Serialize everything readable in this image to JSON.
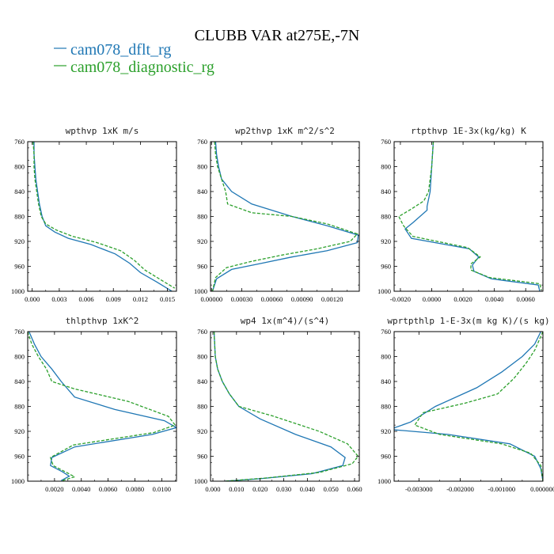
{
  "figure": {
    "title": "CLUBB VAR at275E,-7N",
    "legend": [
      {
        "label": "cam078_dflt_rg",
        "color": "#1f77b4",
        "dash": "solid"
      },
      {
        "label": "cam078_diagnostic_rg",
        "color": "#2ca02c",
        "dash": "dashed"
      }
    ]
  },
  "chart_data": [
    {
      "type": "line",
      "title": "wpthvp  1xK m/s",
      "xlim": [
        -0.0005,
        0.016
      ],
      "ylim": [
        760,
        1000
      ],
      "y_inverted": true,
      "xticks": [
        "0.000",
        "0.003",
        "0.006",
        "0.009",
        "0.012",
        "0.015"
      ],
      "xtick_values": [
        0,
        0.003,
        0.006,
        0.009,
        0.012,
        0.015
      ],
      "yticks": [
        760,
        800,
        840,
        880,
        920,
        960,
        1000
      ],
      "series": [
        {
          "name": "cam078_dflt_rg",
          "x": [
            0.0002,
            0.0002,
            0.0003,
            0.0004,
            0.0006,
            0.0008,
            0.0011,
            0.0015,
            0.0025,
            0.004,
            0.0065,
            0.0092,
            0.0108,
            0.012,
            0.0138,
            0.0155
          ],
          "y": [
            760,
            780,
            800,
            820,
            840,
            860,
            880,
            895,
            905,
            915,
            925,
            940,
            955,
            970,
            985,
            1000
          ]
        },
        {
          "name": "cam078_diagnostic_rg",
          "x": [
            0.0001,
            0.0002,
            0.0002,
            0.0003,
            0.0005,
            0.0007,
            0.001,
            0.0015,
            0.0027,
            0.0045,
            0.0072,
            0.0098,
            0.0113,
            0.0125,
            0.0143,
            0.0158
          ],
          "y": [
            760,
            780,
            800,
            820,
            840,
            860,
            880,
            892,
            902,
            912,
            922,
            935,
            950,
            966,
            982,
            995
          ]
        }
      ]
    },
    {
      "type": "line",
      "title": "wp2thvp  1xK m^2/s^2",
      "xlim": [
        -1e-05,
        0.00147
      ],
      "ylim": [
        760,
        1000
      ],
      "y_inverted": true,
      "xticks": [
        "0.00000",
        "0.00030",
        "0.00060",
        "0.00090",
        "0.00120"
      ],
      "xtick_values": [
        0,
        0.0003,
        0.0006,
        0.0009,
        0.0012
      ],
      "yticks": [
        760,
        800,
        840,
        880,
        920,
        960,
        1000
      ],
      "series": [
        {
          "name": "cam078_dflt_rg",
          "x": [
            4e-05,
            5e-05,
            7e-05,
            0.0001,
            0.0002,
            0.0004,
            0.0006,
            0.0008,
            0.00115,
            0.00146,
            0.00145,
            0.00115,
            0.0008,
            0.0005,
            0.0002,
            5e-05,
            1e-05
          ],
          "y": [
            760,
            780,
            800,
            820,
            840,
            860,
            870,
            880,
            895,
            910,
            922,
            935,
            945,
            955,
            965,
            980,
            1000
          ]
        },
        {
          "name": "cam078_diagnostic_rg",
          "x": [
            3e-05,
            4e-05,
            6e-05,
            0.0001,
            0.00014,
            0.00016,
            0.0004,
            0.0008,
            0.00115,
            0.00145,
            0.00138,
            0.00105,
            0.0007,
            0.0004,
            0.00015,
            4e-05,
            1e-05
          ],
          "y": [
            760,
            780,
            800,
            820,
            840,
            860,
            874,
            880,
            892,
            908,
            920,
            932,
            942,
            952,
            962,
            978,
            1000
          ]
        }
      ]
    },
    {
      "type": "line",
      "title": "rtpthvp  1E-3x(kg/kg) K",
      "xlim": [
        -0.0024,
        0.0071
      ],
      "ylim": [
        760,
        1000
      ],
      "y_inverted": true,
      "xticks": [
        "-0.0020",
        "0.0000",
        "0.0020",
        "0.0040",
        "0.0060"
      ],
      "xtick_values": [
        -0.002,
        0,
        0.002,
        0.004,
        0.006
      ],
      "yticks": [
        760,
        800,
        840,
        880,
        920,
        960,
        1000
      ],
      "series": [
        {
          "name": "cam078_dflt_rg",
          "x": [
            0.0001,
            0.0,
            -0.0001,
            -0.0003,
            -0.0003,
            -0.0012,
            -0.0017,
            -0.0013,
            0.0024,
            0.003,
            0.0026,
            0.0027,
            0.0038,
            0.0068,
            0.0069
          ],
          "y": [
            760,
            800,
            840,
            864,
            870,
            890,
            900,
            915,
            932,
            945,
            958,
            968,
            980,
            990,
            1000
          ]
        },
        {
          "name": "cam078_diagnostic_rg",
          "x": [
            0.0001,
            0.0,
            -0.0002,
            -0.0005,
            -0.0013,
            -0.0021,
            -0.0018,
            -0.0012,
            0.0023,
            0.0031,
            0.0025,
            0.0025,
            0.0037,
            0.0069,
            0.007
          ],
          "y": [
            760,
            800,
            840,
            855,
            868,
            880,
            895,
            912,
            930,
            945,
            956,
            966,
            978,
            988,
            998
          ]
        }
      ]
    },
    {
      "type": "line",
      "title": "thlpthvp  1xK^2",
      "xlim": [
        0.0,
        0.0111
      ],
      "ylim": [
        760,
        1000
      ],
      "y_inverted": true,
      "xticks": [
        "0.0020",
        "0.0040",
        "0.0060",
        "0.0080",
        "0.0100"
      ],
      "xtick_values": [
        0.002,
        0.004,
        0.006,
        0.008,
        0.01
      ],
      "yticks": [
        760,
        800,
        840,
        880,
        920,
        960,
        1000
      ],
      "series": [
        {
          "name": "cam078_dflt_rg",
          "x": [
            0.0001,
            0.0005,
            0.001,
            0.0018,
            0.0025,
            0.0035,
            0.0065,
            0.0102,
            0.0111,
            0.0093,
            0.0035,
            0.0018,
            0.0017,
            0.0026,
            0.0031,
            0.0025
          ],
          "y": [
            760,
            780,
            800,
            820,
            840,
            865,
            885,
            903,
            914,
            925,
            945,
            962,
            975,
            985,
            992,
            999
          ]
        },
        {
          "name": "cam078_diagnostic_rg",
          "x": [
            0.0,
            0.0003,
            0.0008,
            0.0014,
            0.0018,
            0.0035,
            0.0075,
            0.0105,
            0.011,
            0.0094,
            0.0034,
            0.0017,
            0.0019,
            0.0029,
            0.0035,
            0.0026
          ],
          "y": [
            760,
            780,
            800,
            820,
            840,
            852,
            872,
            896,
            910,
            922,
            942,
            962,
            975,
            986,
            993,
            999
          ]
        }
      ]
    },
    {
      "type": "line",
      "title": "wp4  1x(m^4)/(s^4)",
      "xlim": [
        -0.001,
        0.062
      ],
      "ylim": [
        760,
        1000
      ],
      "y_inverted": true,
      "xticks": [
        "0.000",
        "0.010",
        "0.020",
        "0.030",
        "0.040",
        "0.050",
        "0.060"
      ],
      "xtick_values": [
        0,
        0.01,
        0.02,
        0.03,
        0.04,
        0.05,
        0.06
      ],
      "yticks": [
        760,
        800,
        840,
        880,
        920,
        960,
        1000
      ],
      "series": [
        {
          "name": "cam078_dflt_rg",
          "x": [
            0.0005,
            0.001,
            0.002,
            0.004,
            0.007,
            0.011,
            0.02,
            0.035,
            0.05,
            0.056,
            0.055,
            0.042,
            0.02,
            0.005
          ],
          "y": [
            760,
            800,
            820,
            840,
            860,
            880,
            900,
            925,
            945,
            962,
            975,
            988,
            996,
            1000
          ]
        },
        {
          "name": "cam078_diagnostic_rg",
          "x": [
            0.0005,
            0.001,
            0.002,
            0.004,
            0.007,
            0.011,
            0.025,
            0.045,
            0.057,
            0.0615,
            0.059,
            0.045,
            0.022,
            0.005
          ],
          "y": [
            760,
            800,
            820,
            840,
            860,
            880,
            895,
            920,
            940,
            960,
            972,
            986,
            995,
            1000
          ]
        }
      ]
    },
    {
      "type": "line",
      "title": "wprtpthlp  1-E-3x(m kg K)/(s kg)",
      "xlim": [
        -0.0036,
        0.0
      ],
      "ylim": [
        760,
        1000
      ],
      "y_inverted": true,
      "xticks": [
        "-0.003000",
        "-0.002000",
        "-0.001000",
        "0.000000"
      ],
      "xtick_values": [
        -0.003,
        -0.002,
        -0.001,
        0
      ],
      "yticks": [
        760,
        800,
        840,
        880,
        920,
        960,
        1000
      ],
      "series": [
        {
          "name": "cam078_dflt_rg",
          "x": [
            -5e-05,
            -0.0002,
            -0.0005,
            -0.001,
            -0.0016,
            -0.0026,
            -0.0032,
            -0.0037,
            -0.0023,
            -0.0008,
            -0.0002,
            -5e-05,
            0.0
          ],
          "y": [
            760,
            780,
            800,
            825,
            850,
            880,
            905,
            917,
            925,
            940,
            960,
            980,
            1000
          ]
        },
        {
          "name": "cam078_diagnostic_rg",
          "x": [
            0.0,
            -0.0002,
            -0.0004,
            -0.0007,
            -0.0011,
            -0.0019,
            -0.0029,
            -0.0031,
            -0.0025,
            -0.001,
            -0.0003,
            -5e-05,
            0.0
          ],
          "y": [
            760,
            790,
            810,
            835,
            860,
            875,
            890,
            910,
            925,
            940,
            955,
            975,
            1000
          ]
        }
      ]
    }
  ]
}
